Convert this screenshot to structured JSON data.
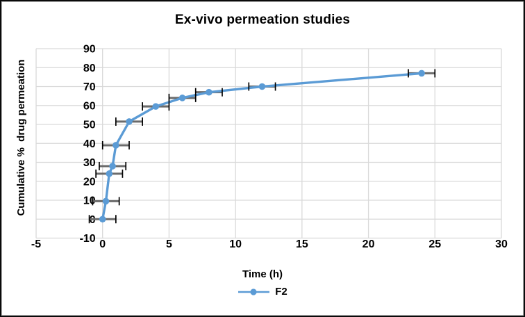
{
  "frame": {
    "background": "#FFFFFF",
    "border_color": "#0A0A0A"
  },
  "chart_data": {
    "type": "line",
    "title": "Ex-vivo permeation studies",
    "xlabel": "Time (h)",
    "ylabel": "Cumulative %  drug permeation",
    "xlim": [
      -5,
      30
    ],
    "ylim": [
      -10,
      90
    ],
    "x_ticks": [
      -5,
      0,
      5,
      10,
      15,
      20,
      25,
      30
    ],
    "y_ticks": [
      90,
      80,
      70,
      60,
      50,
      40,
      30,
      20,
      10,
      0,
      -10
    ],
    "grid": true,
    "legend_position": "bottom-center",
    "colors": {
      "series": "#5B9BD5",
      "gridline": "#D9D9D9",
      "error_bar_line": "#6B6B6B",
      "error_bar_cap": "#000000",
      "text": "#000000"
    },
    "series": [
      {
        "name": "F2",
        "color": "#5B9BD5",
        "marker": "circle",
        "x": [
          0,
          0.25,
          0.5,
          0.75,
          1,
          2,
          4,
          6,
          8,
          12,
          24
        ],
        "y": [
          0,
          9.5,
          24,
          28,
          39,
          51.5,
          59.5,
          64,
          67,
          70,
          77
        ],
        "x_error": 1
      }
    ]
  }
}
